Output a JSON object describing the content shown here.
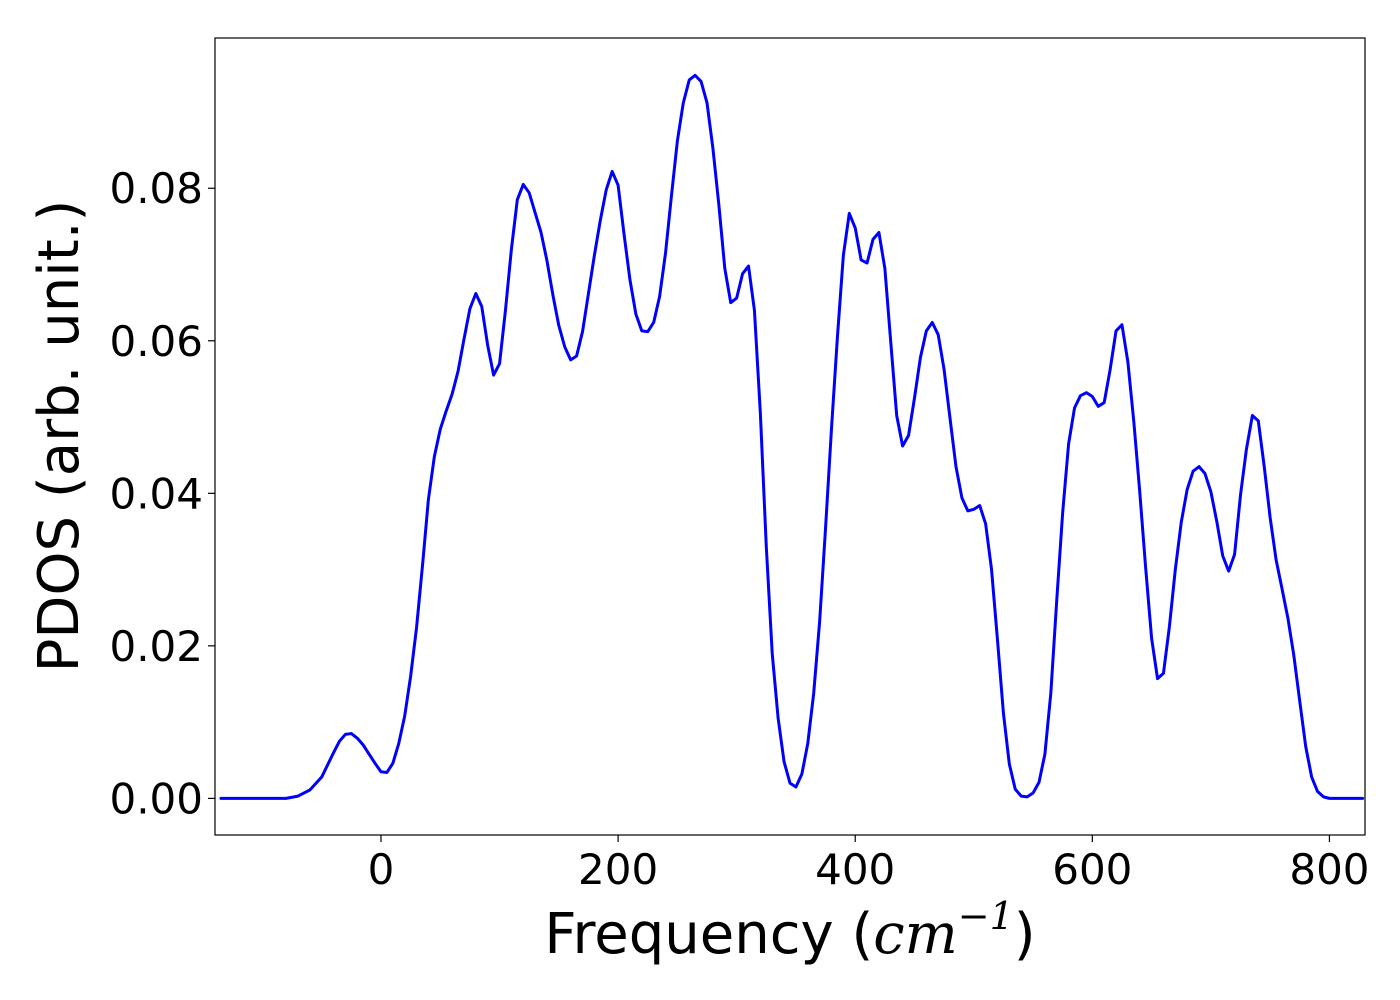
{
  "chart_data": {
    "type": "line",
    "title": "",
    "xlabel": {
      "prefix": "Frequency (",
      "unit_base": "cm",
      "unit_exponent": "−1",
      "suffix": ")"
    },
    "ylabel": "PDOS (arb. unit.)",
    "xlim": [
      -140,
      830
    ],
    "ylim": [
      -0.0048,
      0.0997
    ],
    "xticks": [
      {
        "value": 0,
        "label": "0"
      },
      {
        "value": 200,
        "label": "200"
      },
      {
        "value": 400,
        "label": "400"
      },
      {
        "value": 600,
        "label": "600"
      },
      {
        "value": 800,
        "label": "800"
      }
    ],
    "yticks": [
      {
        "value": 0.0,
        "label": "0.00"
      },
      {
        "value": 0.02,
        "label": "0.02"
      },
      {
        "value": 0.04,
        "label": "0.04"
      },
      {
        "value": 0.06,
        "label": "0.06"
      },
      {
        "value": 0.08,
        "label": "0.08"
      }
    ],
    "grid": false,
    "legend": "none",
    "series": [
      {
        "color": "#0000ff",
        "points": [
          [
            -135,
            0.0
          ],
          [
            -100,
            0.0
          ],
          [
            -80,
            0.0
          ],
          [
            -70,
            0.0003
          ],
          [
            -60,
            0.0011
          ],
          [
            -50,
            0.0028
          ],
          [
            -40,
            0.006
          ],
          [
            -35,
            0.0075
          ],
          [
            -30,
            0.0084
          ],
          [
            -25,
            0.0085
          ],
          [
            -20,
            0.0079
          ],
          [
            -15,
            0.007
          ],
          [
            -10,
            0.0058
          ],
          [
            -5,
            0.0046
          ],
          [
            0,
            0.0035
          ],
          [
            5,
            0.0034
          ],
          [
            10,
            0.0046
          ],
          [
            15,
            0.0072
          ],
          [
            20,
            0.0108
          ],
          [
            25,
            0.016
          ],
          [
            30,
            0.0224
          ],
          [
            35,
            0.0305
          ],
          [
            40,
            0.0392
          ],
          [
            45,
            0.0448
          ],
          [
            50,
            0.0484
          ],
          [
            55,
            0.0508
          ],
          [
            60,
            0.053
          ],
          [
            65,
            0.056
          ],
          [
            70,
            0.0602
          ],
          [
            75,
            0.0642
          ],
          [
            80,
            0.0662
          ],
          [
            85,
            0.0645
          ],
          [
            90,
            0.0594
          ],
          [
            95,
            0.0555
          ],
          [
            100,
            0.057
          ],
          [
            105,
            0.064
          ],
          [
            110,
            0.072
          ],
          [
            115,
            0.0785
          ],
          [
            120,
            0.0805
          ],
          [
            125,
            0.0794
          ],
          [
            130,
            0.0768
          ],
          [
            135,
            0.0742
          ],
          [
            140,
            0.0705
          ],
          [
            145,
            0.066
          ],
          [
            150,
            0.062
          ],
          [
            155,
            0.0592
          ],
          [
            160,
            0.0575
          ],
          [
            165,
            0.058
          ],
          [
            170,
            0.0612
          ],
          [
            175,
            0.0662
          ],
          [
            180,
            0.0712
          ],
          [
            185,
            0.0758
          ],
          [
            190,
            0.0798
          ],
          [
            195,
            0.0822
          ],
          [
            200,
            0.0804
          ],
          [
            205,
            0.074
          ],
          [
            210,
            0.068
          ],
          [
            215,
            0.0635
          ],
          [
            220,
            0.0613
          ],
          [
            225,
            0.0612
          ],
          [
            230,
            0.0624
          ],
          [
            235,
            0.0658
          ],
          [
            240,
            0.0715
          ],
          [
            245,
            0.079
          ],
          [
            250,
            0.0862
          ],
          [
            255,
            0.0912
          ],
          [
            260,
            0.0942
          ],
          [
            265,
            0.0948
          ],
          [
            270,
            0.094
          ],
          [
            275,
            0.0912
          ],
          [
            280,
            0.0852
          ],
          [
            285,
            0.0778
          ],
          [
            290,
            0.0695
          ],
          [
            295,
            0.065
          ],
          [
            300,
            0.0656
          ],
          [
            305,
            0.0688
          ],
          [
            310,
            0.0698
          ],
          [
            315,
            0.064
          ],
          [
            320,
            0.0505
          ],
          [
            325,
            0.033
          ],
          [
            330,
            0.019
          ],
          [
            335,
            0.0105
          ],
          [
            340,
            0.0048
          ],
          [
            345,
            0.002
          ],
          [
            350,
            0.0015
          ],
          [
            355,
            0.0032
          ],
          [
            360,
            0.0072
          ],
          [
            365,
            0.0138
          ],
          [
            370,
            0.0232
          ],
          [
            375,
            0.0355
          ],
          [
            380,
            0.0485
          ],
          [
            385,
            0.0605
          ],
          [
            390,
            0.0712
          ],
          [
            395,
            0.0767
          ],
          [
            400,
            0.0748
          ],
          [
            405,
            0.0706
          ],
          [
            410,
            0.0702
          ],
          [
            415,
            0.0733
          ],
          [
            420,
            0.0742
          ],
          [
            425,
            0.0695
          ],
          [
            430,
            0.0598
          ],
          [
            435,
            0.0502
          ],
          [
            440,
            0.0462
          ],
          [
            445,
            0.0476
          ],
          [
            450,
            0.0525
          ],
          [
            455,
            0.0578
          ],
          [
            460,
            0.0613
          ],
          [
            465,
            0.0624
          ],
          [
            470,
            0.0608
          ],
          [
            475,
            0.0562
          ],
          [
            480,
            0.0498
          ],
          [
            485,
            0.0435
          ],
          [
            490,
            0.0394
          ],
          [
            495,
            0.0377
          ],
          [
            500,
            0.0379
          ],
          [
            505,
            0.0384
          ],
          [
            510,
            0.036
          ],
          [
            515,
            0.03
          ],
          [
            520,
            0.0208
          ],
          [
            525,
            0.0112
          ],
          [
            530,
            0.0045
          ],
          [
            535,
            0.0012
          ],
          [
            540,
            0.0003
          ],
          [
            545,
            0.0002
          ],
          [
            550,
            0.0007
          ],
          [
            555,
            0.0021
          ],
          [
            560,
            0.0058
          ],
          [
            565,
            0.0138
          ],
          [
            570,
            0.026
          ],
          [
            575,
            0.0375
          ],
          [
            580,
            0.0465
          ],
          [
            585,
            0.0512
          ],
          [
            590,
            0.0528
          ],
          [
            595,
            0.0532
          ],
          [
            600,
            0.0527
          ],
          [
            605,
            0.0514
          ],
          [
            610,
            0.0519
          ],
          [
            615,
            0.0562
          ],
          [
            620,
            0.0613
          ],
          [
            625,
            0.0621
          ],
          [
            630,
            0.0572
          ],
          [
            635,
            0.0494
          ],
          [
            640,
            0.0402
          ],
          [
            645,
            0.0302
          ],
          [
            650,
            0.021
          ],
          [
            655,
            0.0157
          ],
          [
            660,
            0.0164
          ],
          [
            665,
            0.0225
          ],
          [
            670,
            0.03
          ],
          [
            675,
            0.0362
          ],
          [
            680,
            0.0405
          ],
          [
            685,
            0.0429
          ],
          [
            690,
            0.0435
          ],
          [
            695,
            0.0426
          ],
          [
            700,
            0.0402
          ],
          [
            705,
            0.0363
          ],
          [
            710,
            0.0318
          ],
          [
            715,
            0.0298
          ],
          [
            720,
            0.032
          ],
          [
            725,
            0.0398
          ],
          [
            730,
            0.0458
          ],
          [
            735,
            0.0502
          ],
          [
            740,
            0.0495
          ],
          [
            745,
            0.0435
          ],
          [
            750,
            0.0368
          ],
          [
            755,
            0.0313
          ],
          [
            760,
            0.0275
          ],
          [
            765,
            0.0236
          ],
          [
            770,
            0.0187
          ],
          [
            775,
            0.0127
          ],
          [
            780,
            0.0068
          ],
          [
            785,
            0.0028
          ],
          [
            790,
            0.0009
          ],
          [
            795,
            0.0002
          ],
          [
            800,
            0.0
          ],
          [
            810,
            0.0
          ],
          [
            828,
            0.0
          ]
        ]
      }
    ]
  }
}
